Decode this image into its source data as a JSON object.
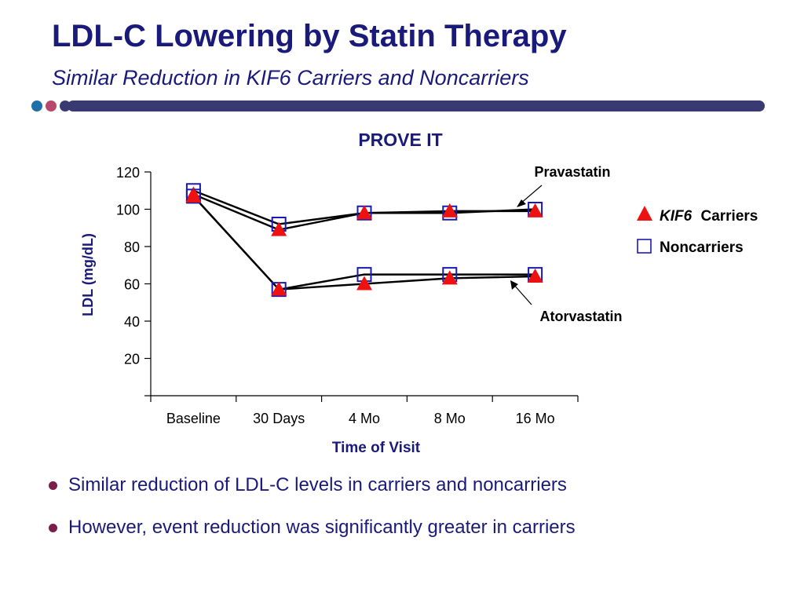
{
  "slide": {
    "title": "LDL-C Lowering by Statin Therapy",
    "subtitle": "Similar Reduction in KIF6 Carriers and Noncarriers",
    "accent_colors": [
      "#1f6fa8",
      "#b8486a",
      "#3a3a72",
      "#3a3a72"
    ],
    "bullet_color": "#7a1f4a"
  },
  "bullets": [
    "Similar reduction of LDL-C levels in carriers and noncarriers",
    "However, event reduction was significantly greater in carriers"
  ],
  "chart_data": {
    "type": "line",
    "title": "PROVE IT",
    "xlabel": "Time of Visit",
    "ylabel": "LDL (mg/dL)",
    "categories": [
      "Baseline",
      "30 Days",
      "4 Mo",
      "8 Mo",
      "16 Mo"
    ],
    "ylim": [
      0,
      120
    ],
    "yticks": [
      20,
      40,
      60,
      80,
      100,
      120
    ],
    "grid": false,
    "legend": {
      "placement": "right",
      "entries": [
        {
          "prefix": "KIF6",
          "label": "Carriers",
          "marker": "triangle",
          "color": "#ee1111"
        },
        {
          "prefix": "",
          "label": "Noncarriers",
          "marker": "square",
          "color": "#1a1ab0"
        }
      ]
    },
    "annotations": [
      {
        "text": "Pravastatin",
        "points_to": "pravastatin"
      },
      {
        "text": "Atorvastatin",
        "points_to": "atorvastatin"
      }
    ],
    "series": [
      {
        "group": "pravastatin",
        "marker": "square",
        "values": [
          110,
          92,
          98,
          98,
          100
        ]
      },
      {
        "group": "pravastatin",
        "marker": "triangle",
        "values": [
          108,
          89,
          98,
          99,
          99
        ]
      },
      {
        "group": "atorvastatin",
        "marker": "square",
        "values": [
          107,
          57,
          65,
          65,
          65
        ]
      },
      {
        "group": "atorvastatin",
        "marker": "triangle",
        "values": [
          107,
          57,
          60,
          63,
          64
        ]
      }
    ]
  }
}
